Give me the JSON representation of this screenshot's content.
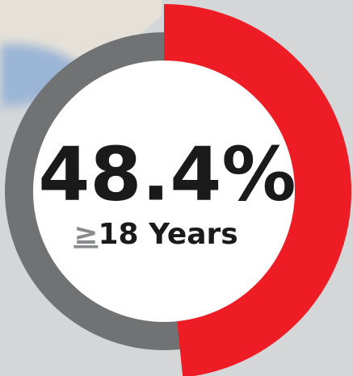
{
  "chart_data": {
    "type": "donut",
    "values": [
      48.4
    ],
    "value_labels": [
      "48.4%"
    ],
    "color": "#ee1c25",
    "rest_color": "#717274",
    "subtitle_symbol": "≥",
    "subtitle": "18 Years"
  }
}
